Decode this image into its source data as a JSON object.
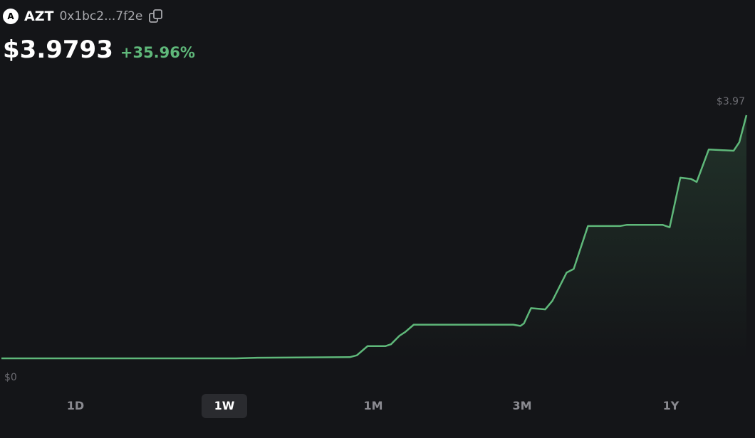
{
  "header": {
    "symbol": "AZT",
    "address": "0x1bc2...7f2e",
    "price": "$3.9793",
    "change": "+35.96%"
  },
  "chart_data": {
    "type": "line",
    "x": [
      0,
      330,
      360,
      490,
      500,
      515,
      540,
      548,
      560,
      568,
      580,
      720,
      730,
      735,
      745,
      765,
      775,
      795,
      805,
      825,
      840,
      870,
      880,
      930,
      940,
      955,
      970,
      978,
      995,
      1030,
      1038,
      1048
    ],
    "series": [
      {
        "color": "#5fb87a",
        "values": [
          0,
          0,
          0.01,
          0.02,
          0.05,
          0.2,
          0.2,
          0.23,
          0.37,
          0.43,
          0.55,
          0.55,
          0.53,
          0.57,
          0.82,
          0.8,
          0.94,
          1.4,
          1.46,
          2.16,
          2.16,
          2.16,
          2.18,
          2.18,
          2.14,
          2.95,
          2.93,
          2.88,
          3.41,
          3.39,
          3.53,
          3.97
        ]
      }
    ],
    "xlim": [
      0,
      1048
    ],
    "ylim": [
      0,
      3.97
    ],
    "yticks": [
      {
        "value": 3.97,
        "label": "$3.97"
      },
      {
        "value": 0,
        "label": "$0"
      }
    ]
  },
  "ranges": {
    "options": [
      "1D",
      "1W",
      "1M",
      "3M",
      "1Y"
    ],
    "selected": 1
  }
}
